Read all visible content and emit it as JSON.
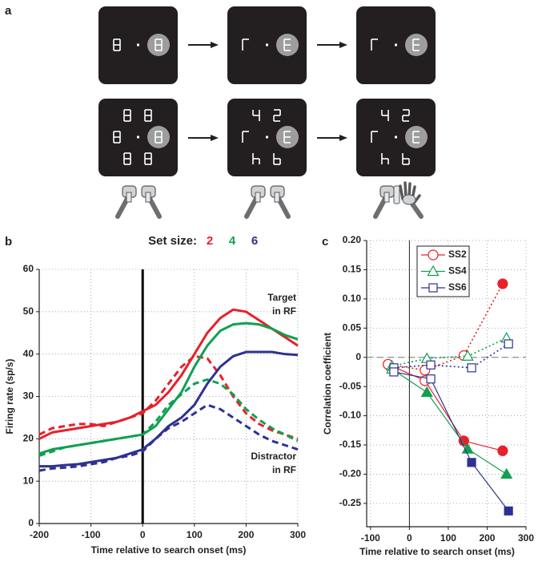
{
  "diagram": {
    "panel": "a"
  },
  "chart_data": [
    {
      "panel": "b",
      "type": "line",
      "title": "Set size:",
      "x_label": "Time relative to search onset (ms)",
      "y_label": "Firing rate (sp/s)",
      "x": [
        -200,
        -175,
        -150,
        -125,
        -100,
        -75,
        -50,
        -25,
        0,
        25,
        50,
        75,
        100,
        125,
        150,
        175,
        200,
        225,
        250,
        275,
        300
      ],
      "series": [
        {
          "name": "2",
          "color": "#e8202a",
          "values": [
            20,
            21.5,
            22,
            22.5,
            23,
            23.5,
            24,
            25,
            26.5,
            28,
            31,
            35,
            40,
            45,
            48.5,
            50.5,
            50,
            48,
            46,
            44,
            42
          ],
          "distractor_values": [
            21,
            22.5,
            23,
            23.5,
            23.5,
            23,
            24,
            25,
            26,
            29,
            33,
            37,
            39.5,
            39,
            35,
            30,
            26,
            23.5,
            22,
            21,
            20
          ]
        },
        {
          "name": "4",
          "color": "#10a050",
          "values": [
            16.5,
            17.5,
            18,
            18.5,
            19,
            19.5,
            20,
            20.5,
            21,
            23,
            27,
            31,
            37,
            42,
            45.5,
            47,
            47.3,
            47,
            46,
            44.5,
            43.5
          ],
          "distractor_values": [
            16,
            17,
            18,
            18.5,
            19,
            19.5,
            20,
            20.5,
            21,
            24,
            28,
            30.5,
            33,
            34,
            33,
            30.5,
            27,
            24.5,
            22.5,
            21,
            19.5
          ]
        },
        {
          "name": "6",
          "color": "#2e3192",
          "values": [
            13.5,
            13.5,
            13.8,
            14,
            14.5,
            15,
            15.5,
            16.5,
            17.5,
            20,
            23,
            25,
            28,
            33,
            37,
            39.5,
            40.5,
            40.5,
            40.5,
            40,
            39.8
          ],
          "distractor_values": [
            12.5,
            13,
            13.2,
            13.5,
            14,
            14.5,
            15.5,
            16,
            17,
            20,
            22.5,
            24,
            26,
            28,
            27,
            25,
            23,
            21,
            19.5,
            18.5,
            17.5
          ]
        }
      ],
      "annotations": [
        [
          "Target",
          "in RF"
        ],
        [
          "Distractor",
          "in RF"
        ]
      ],
      "xlim": [
        -200,
        300
      ],
      "ylim": [
        0,
        60
      ],
      "xticks": [
        -200,
        -100,
        0,
        100,
        200,
        300
      ],
      "yticks": [
        0,
        10,
        20,
        30,
        40,
        50,
        60
      ],
      "grid": true
    },
    {
      "panel": "c",
      "type": "line",
      "x_label": "Time relative to search onset (ms)",
      "y_label": "Correlation coefficient",
      "series": [
        {
          "name": "SS2",
          "color": "#e8202a",
          "marker": "circle",
          "x": [
            -55,
            40,
            140,
            240
          ],
          "values": [
            -0.012,
            -0.04,
            -0.143,
            -0.16
          ],
          "filled": [
            false,
            false,
            true,
            true
          ],
          "dotted_values": [
            -0.012,
            -0.022,
            0.003,
            0.126
          ],
          "dotted_filled": [
            false,
            false,
            false,
            true
          ]
        },
        {
          "name": "SS4",
          "color": "#10a050",
          "marker": "triangle",
          "x": [
            -45,
            45,
            150,
            250
          ],
          "values": [
            -0.02,
            -0.06,
            -0.157,
            -0.2
          ],
          "filled": [
            false,
            true,
            true,
            true
          ],
          "dotted_values": [
            -0.015,
            -0.002,
            0.002,
            0.033
          ],
          "dotted_filled": [
            false,
            false,
            false,
            false
          ]
        },
        {
          "name": "SS6",
          "color": "#2e3192",
          "marker": "square",
          "x": [
            -40,
            55,
            160,
            255
          ],
          "values": [
            -0.025,
            -0.037,
            -0.18,
            -0.263
          ],
          "filled": [
            false,
            false,
            true,
            true
          ],
          "dotted_values": [
            -0.018,
            -0.013,
            -0.018,
            0.023
          ],
          "dotted_filled": [
            false,
            false,
            false,
            false
          ]
        }
      ],
      "xlim": [
        -110,
        300
      ],
      "ylim": [
        -0.29,
        0.2
      ],
      "xticks": [
        -100,
        0,
        100,
        200,
        300
      ],
      "yticks": [
        {
          "value": 0.2,
          "label": "0.20"
        },
        0.15,
        {
          "value": 0.1,
          "label": "0.10"
        },
        0.05,
        0,
        -0.05,
        {
          "value": -0.1,
          "label": "-0.10"
        },
        -0.15,
        {
          "value": -0.2,
          "label": "-0.20"
        },
        -0.25
      ],
      "grid": true,
      "legend": "top-left"
    }
  ]
}
